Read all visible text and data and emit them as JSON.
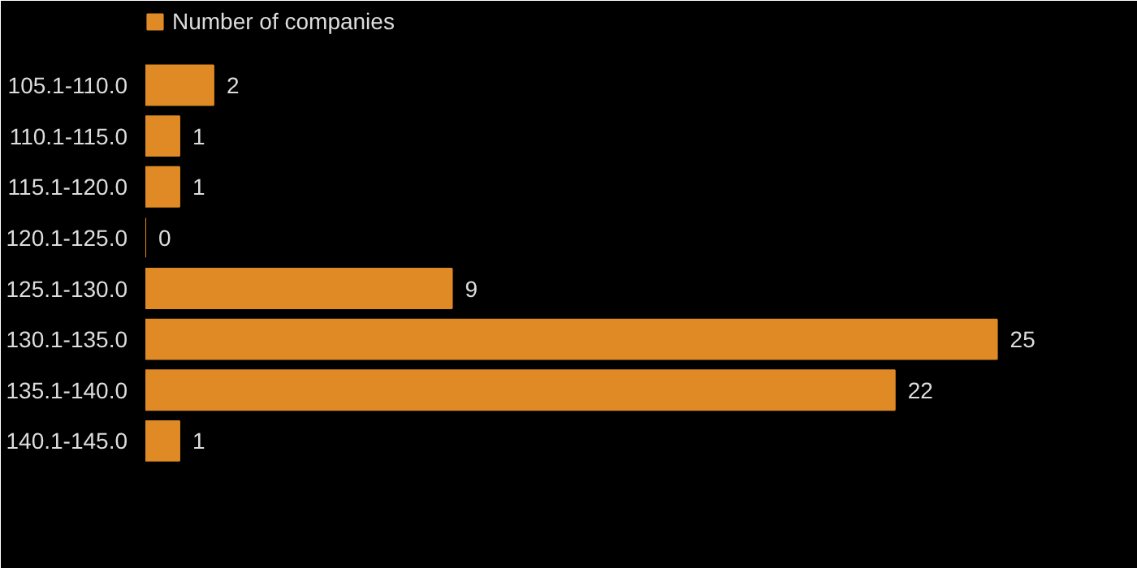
{
  "chart_data": {
    "type": "bar",
    "orientation": "horizontal",
    "categories": [
      "105.1-110.0",
      "110.1-115.0",
      "115.1-120.0",
      "120.1-125.0",
      "125.1-130.0",
      "130.1-135.0",
      "135.1-140.0",
      "140.1-145.0"
    ],
    "series": [
      {
        "name": "Number of companies",
        "color": "#e08a26",
        "values": [
          2,
          1,
          1,
          0,
          9,
          25,
          22,
          1
        ]
      }
    ],
    "data_labels": true,
    "legend": "top left",
    "grid": false,
    "tick_labels": "y"
  }
}
